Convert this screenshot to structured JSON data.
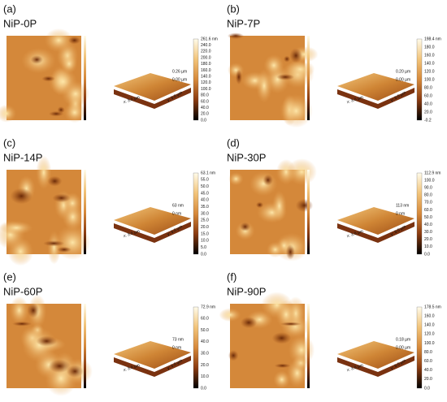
{
  "panels": [
    {
      "label": "(a)",
      "name": "NiP-0P",
      "colorbar": {
        "max": "261.6 nm",
        "ticks": [
          "240.0",
          "220.0",
          "200.0",
          "180.0",
          "160.0",
          "140.0",
          "120.0",
          "100.0",
          "80.0",
          "60.0",
          "40.0",
          "20.0",
          "0.0"
        ]
      },
      "z_top": "0.26 µm",
      "z_bottom": "0.00 µm",
      "x_axis": "x: 3.0 µm",
      "y_axis": "y: 3.0 µm"
    },
    {
      "label": "(b)",
      "name": "NiP-7P",
      "colorbar": {
        "max": "198.4 nm",
        "ticks": [
          "180.0",
          "160.0",
          "140.0",
          "120.0",
          "100.0",
          "80.0",
          "60.0",
          "40.0",
          "20.0",
          "-0.2"
        ]
      },
      "z_top": "0.20 µm",
      "z_bottom": "0.00 µm",
      "x_axis": "x: 3.0 µm",
      "y_axis": "y: 3.0 µm"
    },
    {
      "label": "(c)",
      "name": "NiP-14P",
      "colorbar": {
        "max": "63.1 nm",
        "ticks": [
          "55.0",
          "50.0",
          "45.0",
          "40.0",
          "35.0",
          "30.0",
          "25.0",
          "20.0",
          "15.0",
          "10.0",
          "5.0",
          "0.0"
        ]
      },
      "z_top": "63 nm",
      "z_bottom": "0 nm",
      "x_axis": "x: 3.0 µm",
      "y_axis": "y: 3.0 µm"
    },
    {
      "label": "(d)",
      "name": "NiP-30P",
      "colorbar": {
        "max": "112.9 nm",
        "ticks": [
          "100.0",
          "90.0",
          "80.0",
          "70.0",
          "60.0",
          "50.0",
          "40.0",
          "30.0",
          "20.0",
          "10.0",
          "0.0"
        ]
      },
      "z_top": "113 nm",
      "z_bottom": "0 nm",
      "x_axis": "x: 3.0 µm",
      "y_axis": "y: 3.0 µm"
    },
    {
      "label": "(e)",
      "name": "NiP-60P",
      "colorbar": {
        "max": "72.9 nm",
        "ticks": [
          "60.0",
          "50.0",
          "40.0",
          "30.0",
          "20.0",
          "10.0",
          "0.0"
        ]
      },
      "z_top": "73 nm",
      "z_bottom": "0 nm",
      "x_axis": "x: 3.0 µm",
      "y_axis": "y: 3.0 µm"
    },
    {
      "label": "(f)",
      "name": "NiP-90P",
      "colorbar": {
        "max": "178.5 nm",
        "ticks": [
          "160.0",
          "140.0",
          "120.0",
          "100.0",
          "80.0",
          "60.0",
          "40.0",
          "20.0",
          "0.0"
        ]
      },
      "z_top": "0.18 µm",
      "z_bottom": "0.00 µm",
      "x_axis": "x: 3.0 µm",
      "y_axis": "y: 3.0 µm"
    }
  ]
}
